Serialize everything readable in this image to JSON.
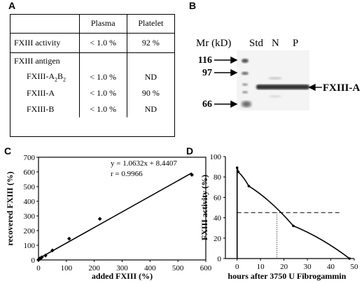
{
  "panels": {
    "a": "A",
    "b": "B",
    "c": "C",
    "d": "D"
  },
  "table": {
    "headers": [
      "",
      "Plasma",
      "Platelet"
    ],
    "rows": [
      {
        "label": "FXIII activity",
        "plasma": "< 1.0 %",
        "platelet": "92 %"
      },
      {
        "label": "FXIII antigen",
        "plasma": "",
        "platelet": ""
      },
      {
        "label": "FXIII-A2B2",
        "plasma": "< 1.0 %",
        "platelet": "ND"
      },
      {
        "label": "FXIII-A",
        "plasma": "< 1.0 %",
        "platelet": "90 %"
      },
      {
        "label": "FXIII-B",
        "plasma": "< 1.0 %",
        "platelet": "ND"
      }
    ]
  },
  "gel": {
    "mr_label": "Mr (kD)",
    "lanes": [
      "Std",
      "N",
      "P"
    ],
    "markers": [
      "116",
      "97",
      "66"
    ],
    "band_label": "FXIII-A"
  },
  "chart_data": [
    {
      "type": "scatter",
      "xlabel": "added FXIII (%)",
      "ylabel": "recovered FXIII (%)",
      "xlim": [
        0,
        600
      ],
      "ylim": [
        0,
        700
      ],
      "xticks": [
        0,
        100,
        200,
        300,
        400,
        500,
        600
      ],
      "yticks": [
        0,
        100,
        200,
        300,
        400,
        500,
        600,
        700
      ],
      "x": [
        0,
        1,
        2,
        3,
        5,
        8,
        12,
        25,
        50,
        110,
        220,
        550
      ],
      "y": [
        0,
        2,
        5,
        8,
        10,
        12,
        18,
        30,
        65,
        145,
        280,
        580
      ],
      "annotation": [
        "y = 1.0632x + 8.4407",
        "r = 0.9966"
      ],
      "trendline": {
        "slope": 1.0632,
        "intercept": 8.4407
      }
    },
    {
      "type": "line",
      "xlabel": "hours after 3750 U  Fibrogammin",
      "ylabel": "FXIII activity (%)",
      "xlim": [
        -5,
        50
      ],
      "ylim": [
        0,
        100
      ],
      "xticks": [
        0,
        10,
        20,
        30,
        40,
        50
      ],
      "yticks": [
        0,
        20,
        40,
        60,
        80,
        100
      ],
      "x": [
        0,
        0.5,
        5,
        24,
        48
      ],
      "y": [
        89,
        85,
        71,
        32,
        0
      ],
      "half_life": {
        "x": 17,
        "y": 45
      }
    }
  ]
}
